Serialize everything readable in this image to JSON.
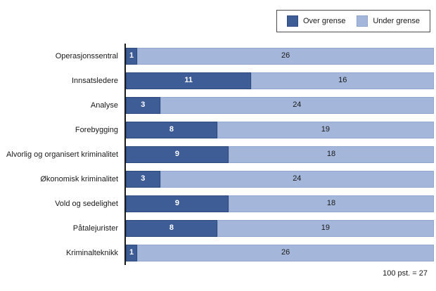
{
  "legend": {
    "items": [
      {
        "label": "Over grense",
        "color": "#3E5C96",
        "border": "#2F4B7E"
      },
      {
        "label": "Under grense",
        "color": "#A4B6D9",
        "border": "#8FA6CF"
      }
    ]
  },
  "note": "100 pst. = 27",
  "chart_data": {
    "type": "bar",
    "orientation": "horizontal",
    "stacked": true,
    "title": "",
    "xlabel": "",
    "ylabel": "",
    "total_per_bar": 27,
    "xlim": [
      0,
      27
    ],
    "grid": false,
    "legend_position": "top-right",
    "annotation": "100 pst. = 27",
    "categories": [
      "Operasjonssentral",
      "Innsatsledere",
      "Analyse",
      "Forebygging",
      "Alvorlig og organisert kriminalitet",
      "Økonomisk kriminalitet",
      "Vold og sedelighet",
      "Påtalejurister",
      "Kriminalteknikk"
    ],
    "series": [
      {
        "name": "Over grense",
        "color": "#3E5C96",
        "border_color": "#2F4B7E",
        "text_color": "#FFFFFF",
        "values": [
          1,
          11,
          3,
          8,
          9,
          3,
          9,
          8,
          1
        ]
      },
      {
        "name": "Under grense",
        "color": "#A4B6D9",
        "border_color": "#8FA6CF",
        "text_color": "#1A1A1A",
        "values": [
          26,
          16,
          24,
          19,
          18,
          24,
          18,
          19,
          26
        ]
      }
    ]
  }
}
